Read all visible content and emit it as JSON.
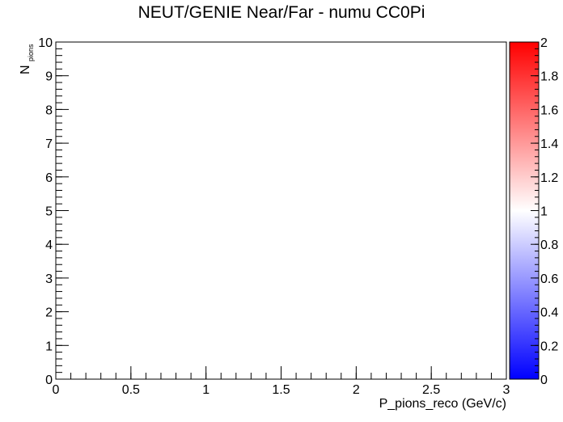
{
  "chart_data": {
    "type": "heatmap",
    "title": "NEUT/GENIE Near/Far - numu CC0Pi",
    "xlabel": "P_pions_reco (GeV/c)",
    "ylabel": {
      "main": "N",
      "subscript": "pions"
    },
    "xlim": [
      0,
      3
    ],
    "ylim": [
      0,
      10
    ],
    "x_ticks": [
      {
        "value": 0,
        "label": "0"
      },
      {
        "value": 0.5,
        "label": "0.5"
      },
      {
        "value": 1,
        "label": "1"
      },
      {
        "value": 1.5,
        "label": "1.5"
      },
      {
        "value": 2,
        "label": "2"
      },
      {
        "value": 2.5,
        "label": "2.5"
      },
      {
        "value": 3,
        "label": "3"
      }
    ],
    "y_ticks": [
      {
        "value": 0,
        "label": "0"
      },
      {
        "value": 1,
        "label": "1"
      },
      {
        "value": 2,
        "label": "2"
      },
      {
        "value": 3,
        "label": "3"
      },
      {
        "value": 4,
        "label": "4"
      },
      {
        "value": 5,
        "label": "5"
      },
      {
        "value": 6,
        "label": "6"
      },
      {
        "value": 7,
        "label": "7"
      },
      {
        "value": 8,
        "label": "8"
      },
      {
        "value": 9,
        "label": "9"
      },
      {
        "value": 10,
        "label": "10"
      }
    ],
    "colorbar": {
      "range": [
        0,
        2
      ],
      "ticks": [
        {
          "value": 0,
          "label": "0"
        },
        {
          "value": 0.2,
          "label": "0.2"
        },
        {
          "value": 0.4,
          "label": "0.4"
        },
        {
          "value": 0.6,
          "label": "0.6"
        },
        {
          "value": 0.8,
          "label": "0.8"
        },
        {
          "value": 1,
          "label": "1"
        },
        {
          "value": 1.2,
          "label": "1.2"
        },
        {
          "value": 1.4,
          "label": "1.4"
        },
        {
          "value": 1.6,
          "label": "1.6"
        },
        {
          "value": 1.8,
          "label": "1.8"
        },
        {
          "value": 2,
          "label": "2"
        }
      ],
      "colors": {
        "low": "#0000ff",
        "mid": "#ffffff",
        "high": "#ff0000"
      }
    },
    "cells": [],
    "grid": false
  }
}
